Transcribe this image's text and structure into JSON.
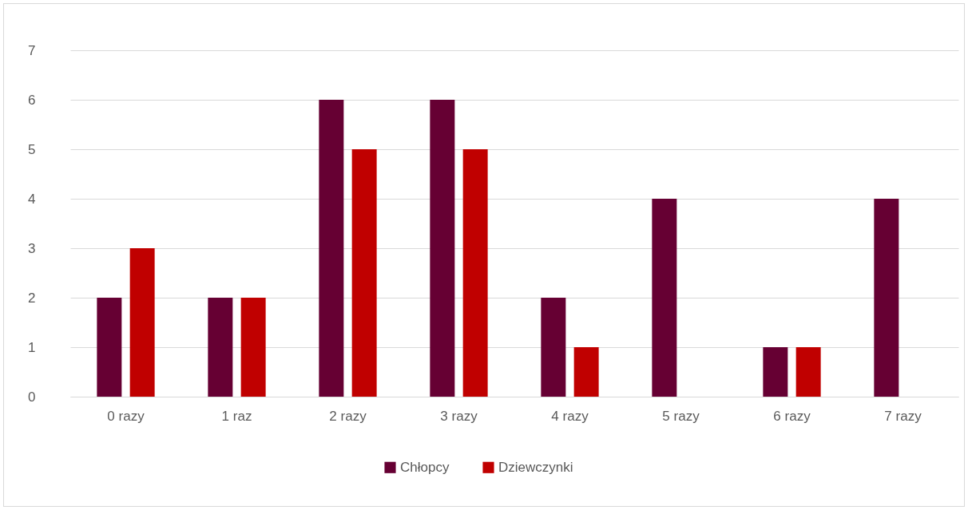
{
  "chart_data": {
    "type": "bar",
    "categories": [
      "0 razy",
      "1 raz",
      "2 razy",
      "3 razy",
      "4 razy",
      "5 razy",
      "6 razy",
      "7 razy"
    ],
    "series": [
      {
        "name": "Chłopcy",
        "color": "#660033",
        "values": [
          2,
          2,
          6,
          6,
          2,
          4,
          1,
          4
        ]
      },
      {
        "name": "Dziewczynki",
        "color": "#c00000",
        "values": [
          3,
          2,
          5,
          5,
          1,
          0,
          1,
          0
        ]
      }
    ],
    "ylim": [
      0,
      7
    ],
    "yticks": [
      0,
      1,
      2,
      3,
      4,
      5,
      6,
      7
    ],
    "grid": "y",
    "legend": "bottom"
  }
}
